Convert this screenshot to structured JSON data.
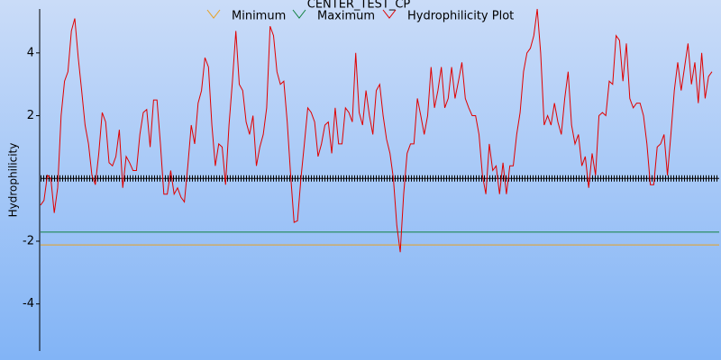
{
  "chart_data": {
    "type": "line",
    "title": "CENTER_TEST_CP",
    "y_label": "Hydrophilicity",
    "ylim": [
      -5.5,
      5.4
    ],
    "yticks": [
      -4,
      -2,
      2,
      4
    ],
    "series": [
      {
        "name": "Minimum",
        "color": "#e8a020",
        "value": -2.12
      },
      {
        "name": "Maximum",
        "color": "#108040",
        "value": -1.71
      },
      {
        "name": "Hydrophilicity Plot",
        "color": "#e00000",
        "values": [
          -0.85,
          -0.7,
          0.1,
          0,
          -1.1,
          -0.3,
          2.0,
          3.1,
          3.4,
          4.7,
          5.1,
          3.85,
          2.8,
          1.7,
          1.1,
          0.1,
          -0.2,
          0.8,
          2.1,
          1.8,
          0.5,
          0.4,
          0.7,
          1.55,
          -0.3,
          0.7,
          0.5,
          0.25,
          0.25,
          1.4,
          2.1,
          2.2,
          1.0,
          2.5,
          2.5,
          1.1,
          -0.5,
          -0.5,
          0.25,
          -0.5,
          -0.3,
          -0.6,
          -0.75,
          0.4,
          1.7,
          1.1,
          2.4,
          2.8,
          3.85,
          3.55,
          1.7,
          0.4,
          1.1,
          1.0,
          -0.2,
          1.7,
          3.1,
          4.7,
          3.0,
          2.8,
          1.8,
          1.4,
          2.0,
          0.4,
          1.0,
          1.4,
          2.25,
          4.85,
          4.55,
          3.4,
          3.0,
          3.1,
          1.8,
          0.1,
          -1.4,
          -1.35,
          0,
          1.1,
          2.25,
          2.1,
          1.8,
          0.7,
          1.1,
          1.7,
          1.8,
          0.8,
          2.25,
          1.1,
          1.1,
          2.25,
          2.1,
          1.8,
          4.0,
          2.1,
          1.7,
          2.8,
          2.0,
          1.4,
          2.8,
          3.0,
          2.0,
          1.25,
          0.8,
          0,
          -1.5,
          -2.35,
          -0.5,
          0.8,
          1.1,
          1.1,
          2.55,
          2.0,
          1.4,
          2.0,
          3.55,
          2.25,
          2.8,
          3.55,
          2.25,
          2.55,
          3.55,
          2.55,
          3.1,
          3.7,
          2.55,
          2.25,
          2.0,
          2.0,
          1.4,
          0.1,
          -0.5,
          1.1,
          0.25,
          0.4,
          -0.5,
          0.5,
          -0.5,
          0.4,
          0.4,
          1.4,
          2.1,
          3.4,
          4.0,
          4.15,
          4.55,
          5.4,
          4.0,
          1.7,
          2.0,
          1.7,
          2.4,
          1.8,
          1.4,
          2.55,
          3.4,
          1.7,
          1.1,
          1.4,
          0.4,
          0.7,
          -0.3,
          0.8,
          0.1,
          2.0,
          2.1,
          2.0,
          3.1,
          3.0,
          4.55,
          4.4,
          3.1,
          4.3,
          2.55,
          2.25,
          2.4,
          2.4,
          2.0,
          1.1,
          -0.2,
          -0.2,
          1.0,
          1.1,
          1.4,
          0.1,
          1.4,
          2.8,
          3.7,
          2.8,
          3.55,
          4.3,
          3.0,
          3.7,
          2.4,
          4.0,
          2.55,
          3.25,
          3.4
        ]
      }
    ]
  }
}
